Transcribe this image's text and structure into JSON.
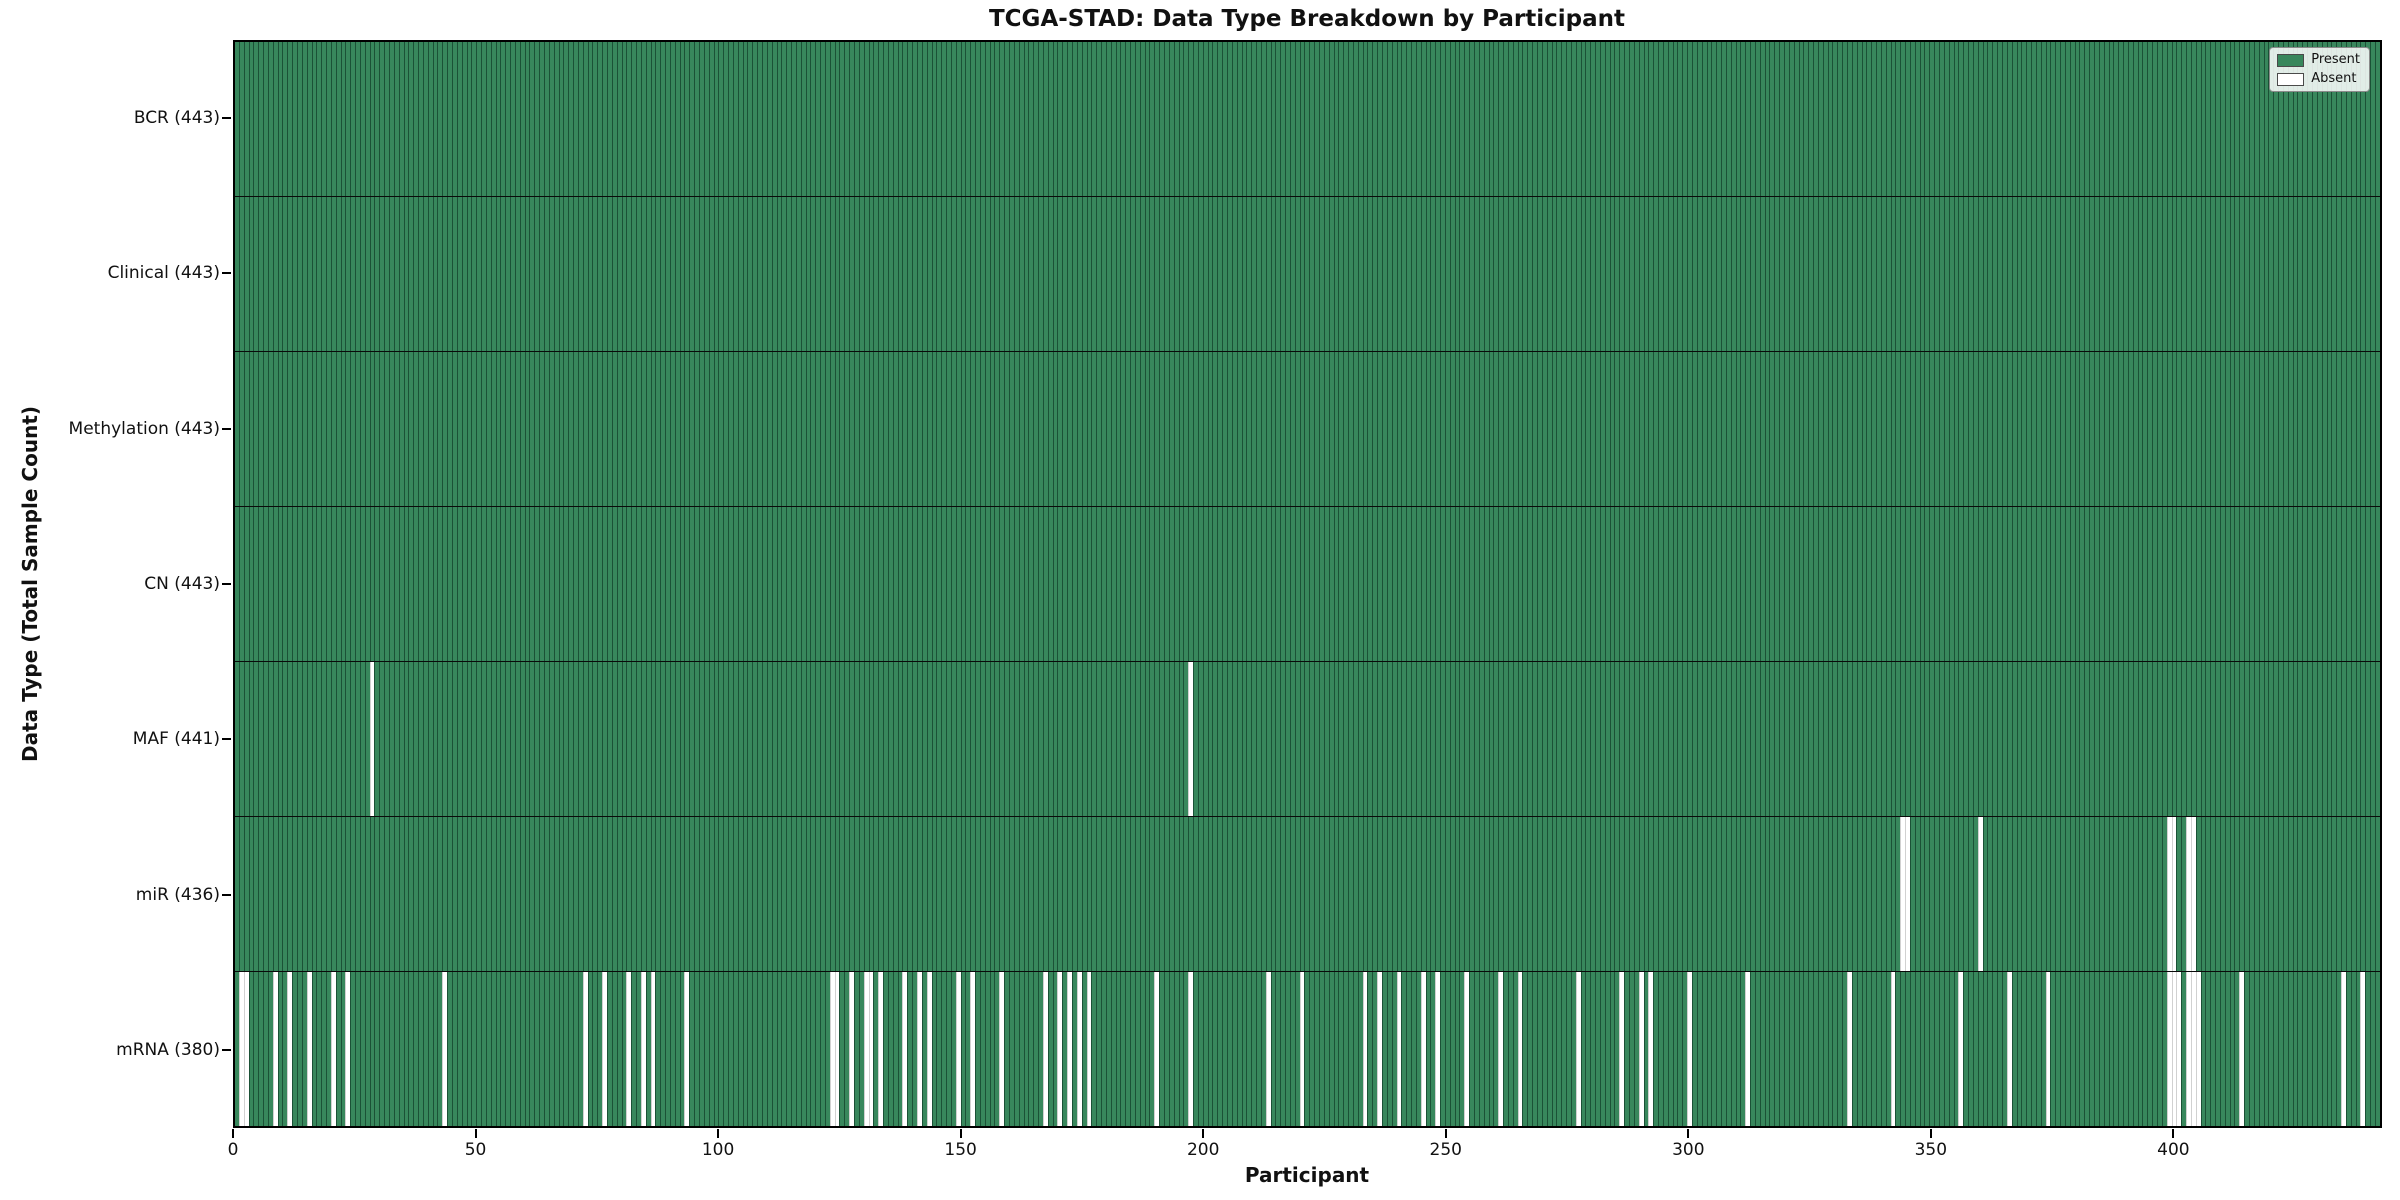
{
  "title": "TCGA-STAD: Data Type Breakdown by Participant",
  "xlabel": "Participant",
  "ylabel": "Data Type (Total Sample Count)",
  "legend": {
    "present_label": "Present",
    "absent_label": "Absent"
  },
  "colors": {
    "present": "#38875c",
    "absent": "#ffffff",
    "row_divider": "#0a0a0a"
  },
  "x_ticks": [
    0,
    50,
    100,
    150,
    200,
    250,
    300,
    350,
    400
  ],
  "n_participants": 443,
  "chart_data": {
    "type": "heatmap",
    "x_axis_label": "Participant",
    "y_axis_label": "Data Type (Total Sample Count)",
    "x_range": [
      0,
      443
    ],
    "grid": false,
    "legend_position": "upper right",
    "legend_entries": [
      "Present",
      "Absent"
    ],
    "rows": [
      {
        "label": "BCR (443)",
        "name": "BCR",
        "total": 443,
        "absent": []
      },
      {
        "label": "Clinical (443)",
        "name": "Clinical",
        "total": 443,
        "absent": []
      },
      {
        "label": "Methylation (443)",
        "name": "Methylation",
        "total": 443,
        "absent": []
      },
      {
        "label": "CN (443)",
        "name": "CN",
        "total": 443,
        "absent": []
      },
      {
        "label": "MAF (441)",
        "name": "MAF",
        "total": 441,
        "absent": [
          28,
          197
        ]
      },
      {
        "label": "miR (436)",
        "name": "miR",
        "total": 436,
        "absent": [
          344,
          345,
          360,
          399,
          400,
          403,
          404
        ]
      },
      {
        "label": "mRNA (380)",
        "name": "mRNA",
        "total": 380,
        "absent": [
          1,
          2,
          8,
          11,
          15,
          20,
          23,
          43,
          72,
          76,
          81,
          84,
          86,
          93,
          123,
          124,
          127,
          130,
          131,
          133,
          138,
          141,
          143,
          149,
          152,
          158,
          167,
          170,
          172,
          174,
          176,
          190,
          197,
          213,
          220,
          233,
          236,
          240,
          245,
          248,
          254,
          261,
          265,
          277,
          286,
          290,
          292,
          300,
          312,
          333,
          342,
          356,
          366,
          374,
          399,
          400,
          401,
          403,
          404,
          405,
          414,
          435,
          439
        ]
      }
    ]
  }
}
